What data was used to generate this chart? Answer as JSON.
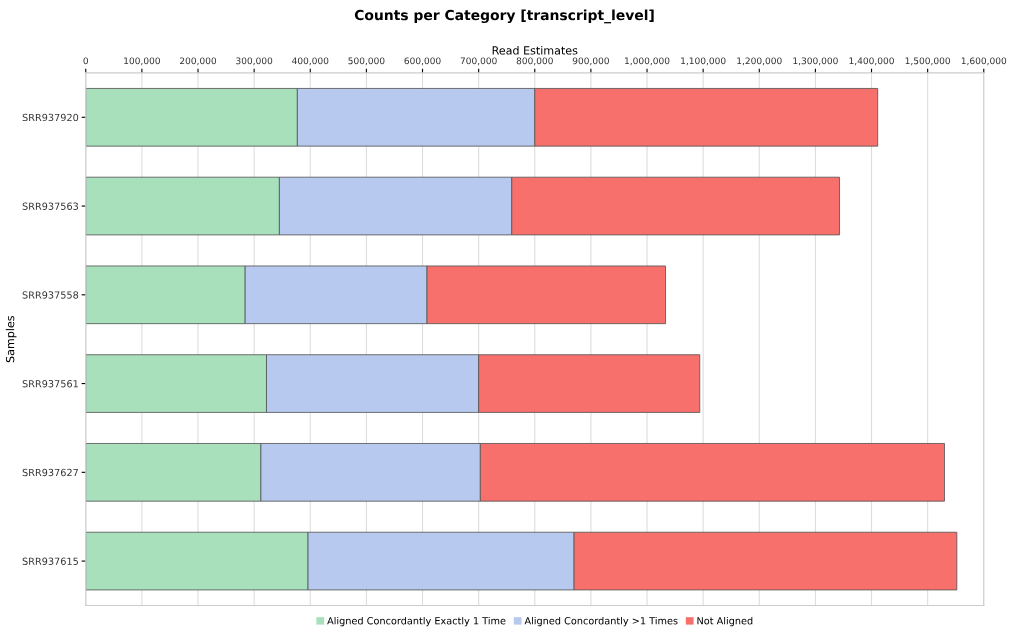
{
  "chart_data": {
    "type": "bar",
    "orientation": "horizontal",
    "stacked": true,
    "title": "Counts per Category [transcript_level]",
    "xlabel": "Read Estimates",
    "ylabel": "Samples",
    "categories": [
      "SRR937920",
      "SRR937563",
      "SRR937558",
      "SRR937561",
      "SRR937627",
      "SRR937615"
    ],
    "series": [
      {
        "name": "Aligned Concordantly Exactly 1 Time",
        "color": "#a8e0bc",
        "values": [
          377000,
          345000,
          284000,
          322000,
          312000,
          396000
        ]
      },
      {
        "name": "Aligned Concordantly >1 Times",
        "color": "#b7c9ee",
        "values": [
          423000,
          414000,
          324000,
          378000,
          391000,
          474000
        ]
      },
      {
        "name": "Not Aligned",
        "color": "#f7706c",
        "values": [
          611000,
          584000,
          425000,
          394000,
          827000,
          682000
        ]
      }
    ],
    "xlim": [
      0,
      1600000
    ],
    "xticks": [
      {
        "value": 0,
        "label": "0"
      },
      {
        "value": 100000,
        "label": "100,000"
      },
      {
        "value": 200000,
        "label": "200,000"
      },
      {
        "value": 300000,
        "label": "300,000"
      },
      {
        "value": 400000,
        "label": "400,000"
      },
      {
        "value": 500000,
        "label": "500,000"
      },
      {
        "value": 600000,
        "label": "600,000"
      },
      {
        "value": 700000,
        "label": "700,000"
      },
      {
        "value": 800000,
        "label": "800,000"
      },
      {
        "value": 900000,
        "label": "900,000"
      },
      {
        "value": 1000000,
        "label": "1,000,000"
      },
      {
        "value": 1100000,
        "label": "1,100,000"
      },
      {
        "value": 1200000,
        "label": "1,200,000"
      },
      {
        "value": 1300000,
        "label": "1,300,000"
      },
      {
        "value": 1400000,
        "label": "1,400,000"
      },
      {
        "value": 1500000,
        "label": "1,500,000"
      },
      {
        "value": 1600000,
        "label": "1,600,000"
      }
    ],
    "grid": "x",
    "legend": "bottom"
  }
}
